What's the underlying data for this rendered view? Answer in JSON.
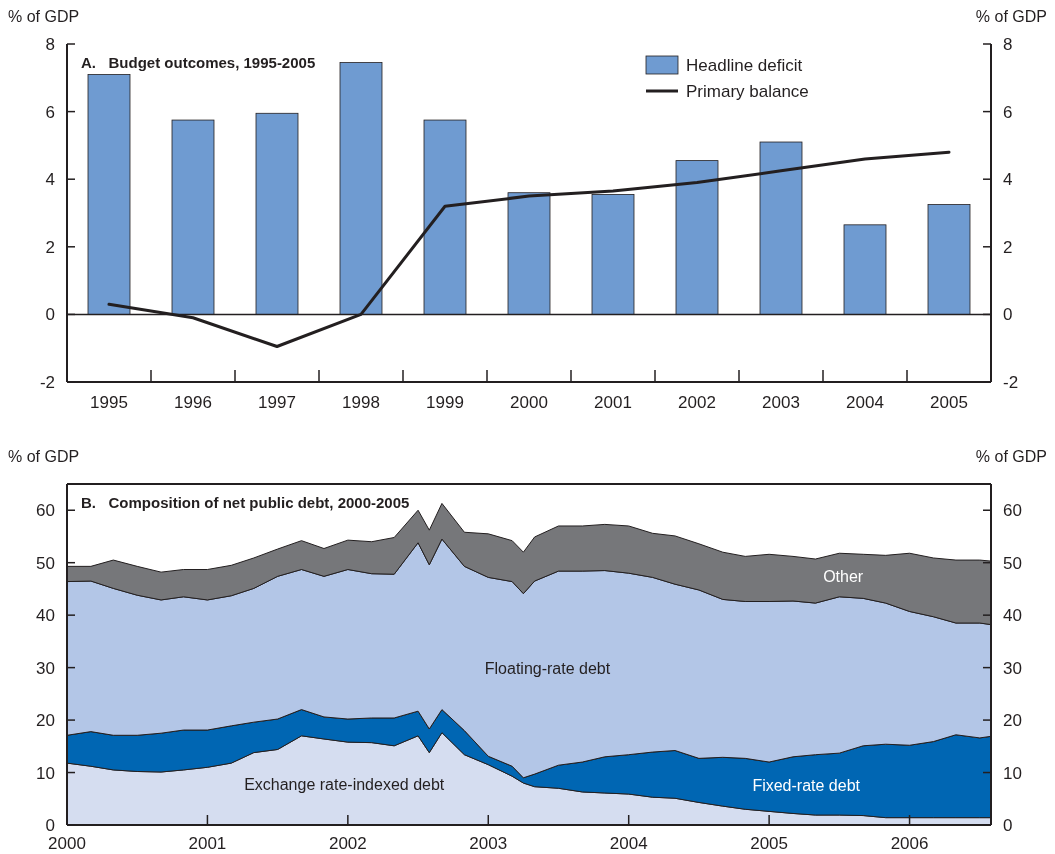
{
  "chart_data": [
    {
      "type": "bar",
      "title": "A.   Budget outcomes, 1995-2005",
      "ylabel": "% of GDP",
      "y2label": "% of GDP",
      "categories": [
        "1995",
        "1996",
        "1997",
        "1998",
        "1999",
        "2000",
        "2001",
        "2002",
        "2003",
        "2004",
        "2005"
      ],
      "series": [
        {
          "name": "Headline deficit",
          "color": "#6f9bd1",
          "values": [
            7.1,
            5.75,
            5.95,
            7.45,
            5.75,
            3.6,
            3.55,
            4.55,
            5.1,
            2.65,
            3.25
          ]
        },
        {
          "name": "Primary balance",
          "type": "line",
          "color": "#231f20",
          "values": [
            0.3,
            -0.1,
            -0.95,
            0.0,
            3.2,
            3.5,
            3.65,
            3.9,
            4.25,
            4.6,
            4.8
          ]
        }
      ],
      "ylim": [
        -2,
        8
      ],
      "yticks": [
        -2,
        0,
        2,
        4,
        6,
        8
      ],
      "y2lim": [
        -2,
        8
      ],
      "y2ticks": [
        -2,
        0,
        2,
        4,
        6,
        8
      ],
      "legend": "top right"
    },
    {
      "type": "area",
      "stacked": true,
      "title": "B.   Composition of net public debt, 2000-2005",
      "ylabel": "% of GDP",
      "y2label": "% of GDP",
      "x": [
        2000,
        2000.17,
        2000.33,
        2000.5,
        2000.67,
        2000.83,
        2001,
        2001.17,
        2001.33,
        2001.5,
        2001.67,
        2001.83,
        2002,
        2002.17,
        2002.33,
        2002.5,
        2002.58,
        2002.67,
        2002.83,
        2003,
        2003.17,
        2003.25,
        2003.33,
        2003.5,
        2003.67,
        2003.83,
        2004,
        2004.17,
        2004.33,
        2004.5,
        2004.67,
        2004.83,
        2005,
        2005.17,
        2005.33,
        2005.5,
        2005.67,
        2005.83,
        2006,
        2006.17,
        2006.33,
        2006.5,
        2006.58
      ],
      "series": [
        {
          "name": "Exchange rate-indexed debt",
          "color": "#d5ddf0",
          "values": [
            11.8,
            11.2,
            10.5,
            10.2,
            10.1,
            10.5,
            11.0,
            11.8,
            13.8,
            14.4,
            17.0,
            16.4,
            15.8,
            15.7,
            15.1,
            17.0,
            13.8,
            17.6,
            13.4,
            11.5,
            9.3,
            8.0,
            7.3,
            7.0,
            6.3,
            6.1,
            5.9,
            5.3,
            5.1,
            4.3,
            3.6,
            3.0,
            2.6,
            2.2,
            1.9,
            1.9,
            1.8,
            1.4,
            1.4,
            1.4,
            1.4,
            1.4,
            1.4
          ]
        },
        {
          "name": "Fixed-rate debt",
          "color": "#0066b3",
          "values": [
            5.3,
            6.6,
            6.6,
            6.9,
            7.4,
            7.6,
            7.1,
            7.1,
            5.8,
            5.8,
            5.0,
            4.2,
            4.4,
            4.7,
            5.3,
            4.7,
            4.5,
            4.4,
            4.6,
            1.6,
            1.9,
            1.0,
            2.4,
            4.4,
            5.7,
            6.9,
            7.5,
            8.6,
            9.1,
            8.4,
            9.3,
            9.7,
            9.4,
            10.8,
            11.5,
            11.8,
            13.3,
            14.0,
            13.8,
            14.5,
            15.8,
            15.2,
            15.5
          ]
        },
        {
          "name": "Floating-rate debt",
          "color": "#b3c6e7",
          "values": [
            29.3,
            28.7,
            28.0,
            26.7,
            25.4,
            25.4,
            24.8,
            24.8,
            25.5,
            27.2,
            26.7,
            26.8,
            28.5,
            27.5,
            27.4,
            32.1,
            31.3,
            32.5,
            31.3,
            34.1,
            35.2,
            35.1,
            36.8,
            37.0,
            36.4,
            35.5,
            34.6,
            33.3,
            31.7,
            32.1,
            30.1,
            29.9,
            30.6,
            29.7,
            28.9,
            29.8,
            28.1,
            26.9,
            25.5,
            23.8,
            21.3,
            21.9,
            21.3
          ]
        },
        {
          "name": "Other",
          "color": "#76777a",
          "values": [
            2.9,
            2.8,
            5.4,
            5.5,
            5.3,
            5.2,
            5.8,
            5.8,
            5.8,
            5.2,
            5.5,
            5.3,
            5.6,
            6.1,
            7.0,
            6.2,
            6.6,
            6.8,
            6.5,
            8.3,
            7.8,
            7.9,
            8.4,
            8.6,
            8.6,
            8.8,
            9.0,
            8.4,
            9.2,
            8.8,
            9.0,
            8.6,
            9.0,
            8.5,
            8.4,
            8.3,
            8.4,
            9.1,
            11.1,
            11.2,
            12.0,
            12.0,
            12.1
          ]
        }
      ],
      "xlim": [
        2000,
        2006.58
      ],
      "xticks": [
        2000,
        2001,
        2002,
        2003,
        2004,
        2005,
        2006
      ],
      "ylim": [
        0,
        65
      ],
      "yticks": [
        0,
        10,
        20,
        30,
        40,
        50,
        60
      ],
      "y2lim": [
        0,
        65
      ],
      "y2ticks": [
        0,
        10,
        20,
        30,
        40,
        50,
        60
      ]
    }
  ]
}
